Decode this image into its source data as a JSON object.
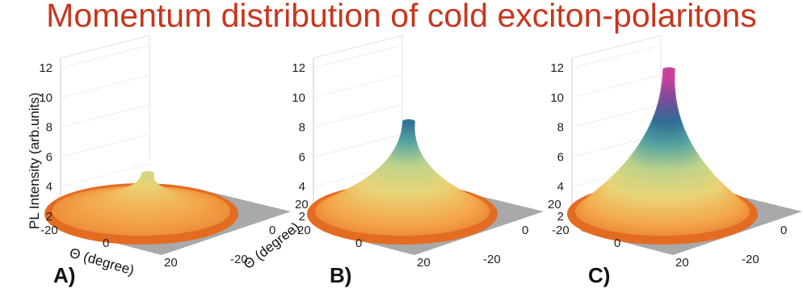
{
  "title": "Momentum distribution of cold exciton-polaritons",
  "colors": {
    "title": "#c8361d",
    "floor": "#9a9a9a",
    "colormap": [
      "#e0631b",
      "#f3a54a",
      "#e9d477",
      "#bfd38a",
      "#58a5a0",
      "#2e6d95",
      "#7a4c9c",
      "#c53f9b"
    ]
  },
  "chart_data": [
    {
      "type": "surface3d",
      "panel_label": "A)",
      "zlabel": "PL Intensity (arb.units)",
      "xlabel": "Θ (degree)",
      "ylabel": "Θ (degree)",
      "z_ticks": [
        "2",
        "4",
        "6",
        "8",
        "10",
        "12"
      ],
      "x_ticks": [
        "-20",
        "0",
        "20"
      ],
      "y_ticks": [
        "20",
        "0",
        "-20"
      ],
      "zlim": [
        2,
        12
      ],
      "peak_z": 5.5,
      "plateau_z": 3.0
    },
    {
      "type": "surface3d",
      "panel_label": "B)",
      "z_ticks": [
        "2",
        "4",
        "6",
        "8",
        "10",
        "12"
      ],
      "x_ticks": [
        "-20",
        "0",
        "20"
      ],
      "y_ticks": [
        "20",
        "0",
        "-20"
      ],
      "zlim": [
        2,
        12
      ],
      "peak_z": 9.0,
      "plateau_z": 3.0
    },
    {
      "type": "surface3d",
      "panel_label": "C)",
      "z_ticks": [
        "2",
        "4",
        "6",
        "8",
        "10",
        "12"
      ],
      "x_ticks": [
        "-20",
        "0",
        "20"
      ],
      "y_ticks": [
        "20",
        "0",
        "-20"
      ],
      "zlim": [
        2,
        12
      ],
      "peak_z": 12.5,
      "plateau_z": 3.0
    }
  ]
}
